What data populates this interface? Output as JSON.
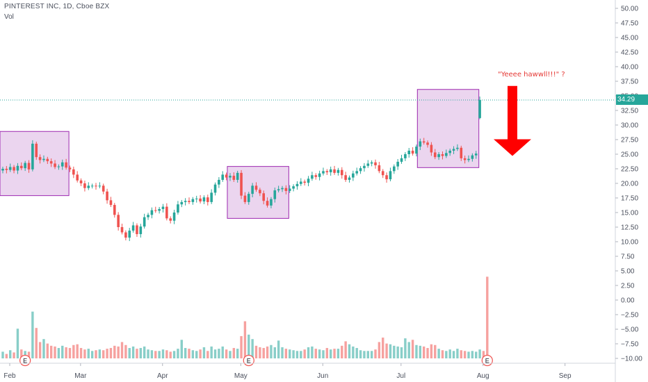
{
  "header": {
    "title": "PINTEREST INC, 1D, Cboe BZX",
    "volume_label": "Vol"
  },
  "annotation": {
    "text": "\"Yeeee hawwll!!!\" ?",
    "color": "#e53935"
  },
  "price_badge": {
    "text": "34.29",
    "color": "#26a69a"
  },
  "colors": {
    "up": "#26a69a",
    "down": "#ef5350",
    "box_fill": "#e1bee7",
    "box_stroke": "#9c27b0",
    "arrow": "#ff0000",
    "earnings_marker": "#ef5350",
    "axis_text": "#4a4f5c"
  },
  "chart_data": {
    "type": "candlestick",
    "title": "PINTEREST INC, 1D, Cboe BZX",
    "x_axis": {
      "ticks": [
        "Feb",
        "Mar",
        "Apr",
        "May",
        "Jun",
        "Jul",
        "Aug",
        "Sep"
      ]
    },
    "y_axis": {
      "position": "right",
      "range": [
        -12.5,
        52.5
      ],
      "ticks": [
        "50.00",
        "47.50",
        "45.00",
        "42.50",
        "40.00",
        "37.50",
        "35.00",
        "32.50",
        "30.00",
        "27.50",
        "25.00",
        "22.50",
        "20.00",
        "17.50",
        "15.00",
        "12.50",
        "10.00",
        "7.50",
        "5.00",
        "2.50",
        "0.00",
        "−2.50",
        "−5.00",
        "−7.50",
        "−10.00"
      ]
    },
    "last_price": 34.29,
    "closes": [
      22.5,
      22.3,
      22.8,
      22.2,
      23.0,
      22.6,
      23.5,
      22.4,
      26.8,
      24.5,
      24.0,
      24.2,
      23.8,
      23.4,
      22.8,
      22.9,
      23.6,
      22.7,
      22.4,
      21.5,
      20.5,
      20.0,
      19.2,
      19.6,
      19.6,
      19.5,
      19.6,
      18.6,
      17.1,
      16.3,
      14.6,
      12.5,
      11.6,
      10.7,
      11.9,
      12.8,
      11.3,
      12.6,
      14.2,
      14.6,
      15.4,
      15.3,
      15.6,
      16.0,
      14.0,
      13.6,
      15.0,
      16.4,
      16.8,
      17.0,
      16.8,
      17.3,
      17.4,
      16.9,
      17.6,
      16.8,
      18.4,
      19.8,
      20.6,
      21.5,
      21.0,
      21.3,
      20.6,
      21.8,
      17.9,
      16.8,
      18.2,
      19.6,
      18.9,
      18.3,
      17.0,
      16.2,
      17.3,
      18.8,
      19.0,
      19.2,
      18.7,
      19.1,
      19.5,
      19.9,
      20.3,
      20.1,
      20.8,
      21.4,
      21.1,
      21.7,
      22.1,
      21.9,
      22.4,
      21.8,
      22.3,
      21.4,
      20.6,
      21.0,
      21.7,
      22.1,
      22.6,
      23.0,
      23.4,
      23.6,
      23.1,
      22.1,
      21.4,
      20.7,
      22.1,
      22.9,
      23.7,
      24.3,
      25.0,
      25.6,
      25.1,
      26.3,
      27.2,
      27.0,
      26.6,
      25.3,
      24.5,
      25.0,
      24.7,
      25.2,
      25.6,
      25.9,
      26.1,
      24.3,
      24.0,
      24.2,
      24.8,
      25.1,
      34.29
    ],
    "volume": {
      "axis_range_price_units": [
        -10.0,
        4.0
      ],
      "values": [
        0.9,
        0.6,
        1.1,
        0.8,
        4.0,
        1.2,
        1.0,
        0.9,
        6.3,
        4.1,
        2.2,
        2.6,
        2.0,
        1.7,
        1.6,
        1.4,
        1.7,
        1.5,
        1.4,
        1.8,
        1.9,
        1.4,
        1.2,
        1.3,
        1.0,
        1.1,
        1.2,
        1.1,
        1.3,
        1.4,
        1.7,
        1.6,
        2.2,
        1.8,
        1.4,
        1.6,
        1.3,
        1.4,
        1.6,
        1.2,
        1.1,
        1.0,
        1.0,
        1.2,
        1.1,
        0.9,
        1.0,
        1.3,
        2.5,
        1.4,
        1.3,
        1.1,
        1.0,
        1.2,
        1.5,
        1.0,
        1.6,
        1.2,
        1.3,
        1.6,
        1.2,
        1.0,
        1.4,
        1.3,
        3.0,
        5.0,
        3.2,
        2.6,
        1.7,
        1.5,
        1.4,
        1.6,
        1.8,
        1.5,
        2.4,
        1.5,
        1.3,
        1.2,
        1.1,
        1.0,
        1.0,
        1.2,
        1.5,
        1.6,
        1.3,
        1.2,
        1.1,
        1.4,
        1.2,
        1.3,
        1.3,
        1.7,
        2.3,
        1.9,
        1.6,
        1.4,
        1.1,
        1.0,
        1.0,
        1.0,
        1.2,
        2.2,
        2.8,
        2.0,
        1.9,
        1.7,
        1.6,
        1.5,
        2.7,
        2.2,
        2.5,
        1.8,
        1.7,
        1.6,
        1.4,
        1.9,
        1.8,
        1.3,
        1.1,
        1.0,
        1.2,
        1.0,
        1.3,
        1.1,
        1.0,
        0.9,
        1.0,
        0.9,
        1.2,
        1.0,
        11.0
      ]
    },
    "earnings_markers": {
      "label": "E",
      "bar_index": [
        6,
        66,
        130
      ]
    },
    "annotation_boxes": [
      {
        "from_index": 0,
        "to_index": 17,
        "y_range": [
          17.9,
          28.9
        ]
      },
      {
        "from_index": 61,
        "to_index": 76,
        "y_range": [
          14.0,
          22.9
        ]
      },
      {
        "from_index": 112,
        "to_index": 127,
        "y_range": [
          22.7,
          36.1
        ]
      }
    ],
    "arrow": {
      "direction": "down",
      "y_range": [
        24.7,
        36.7
      ]
    }
  }
}
